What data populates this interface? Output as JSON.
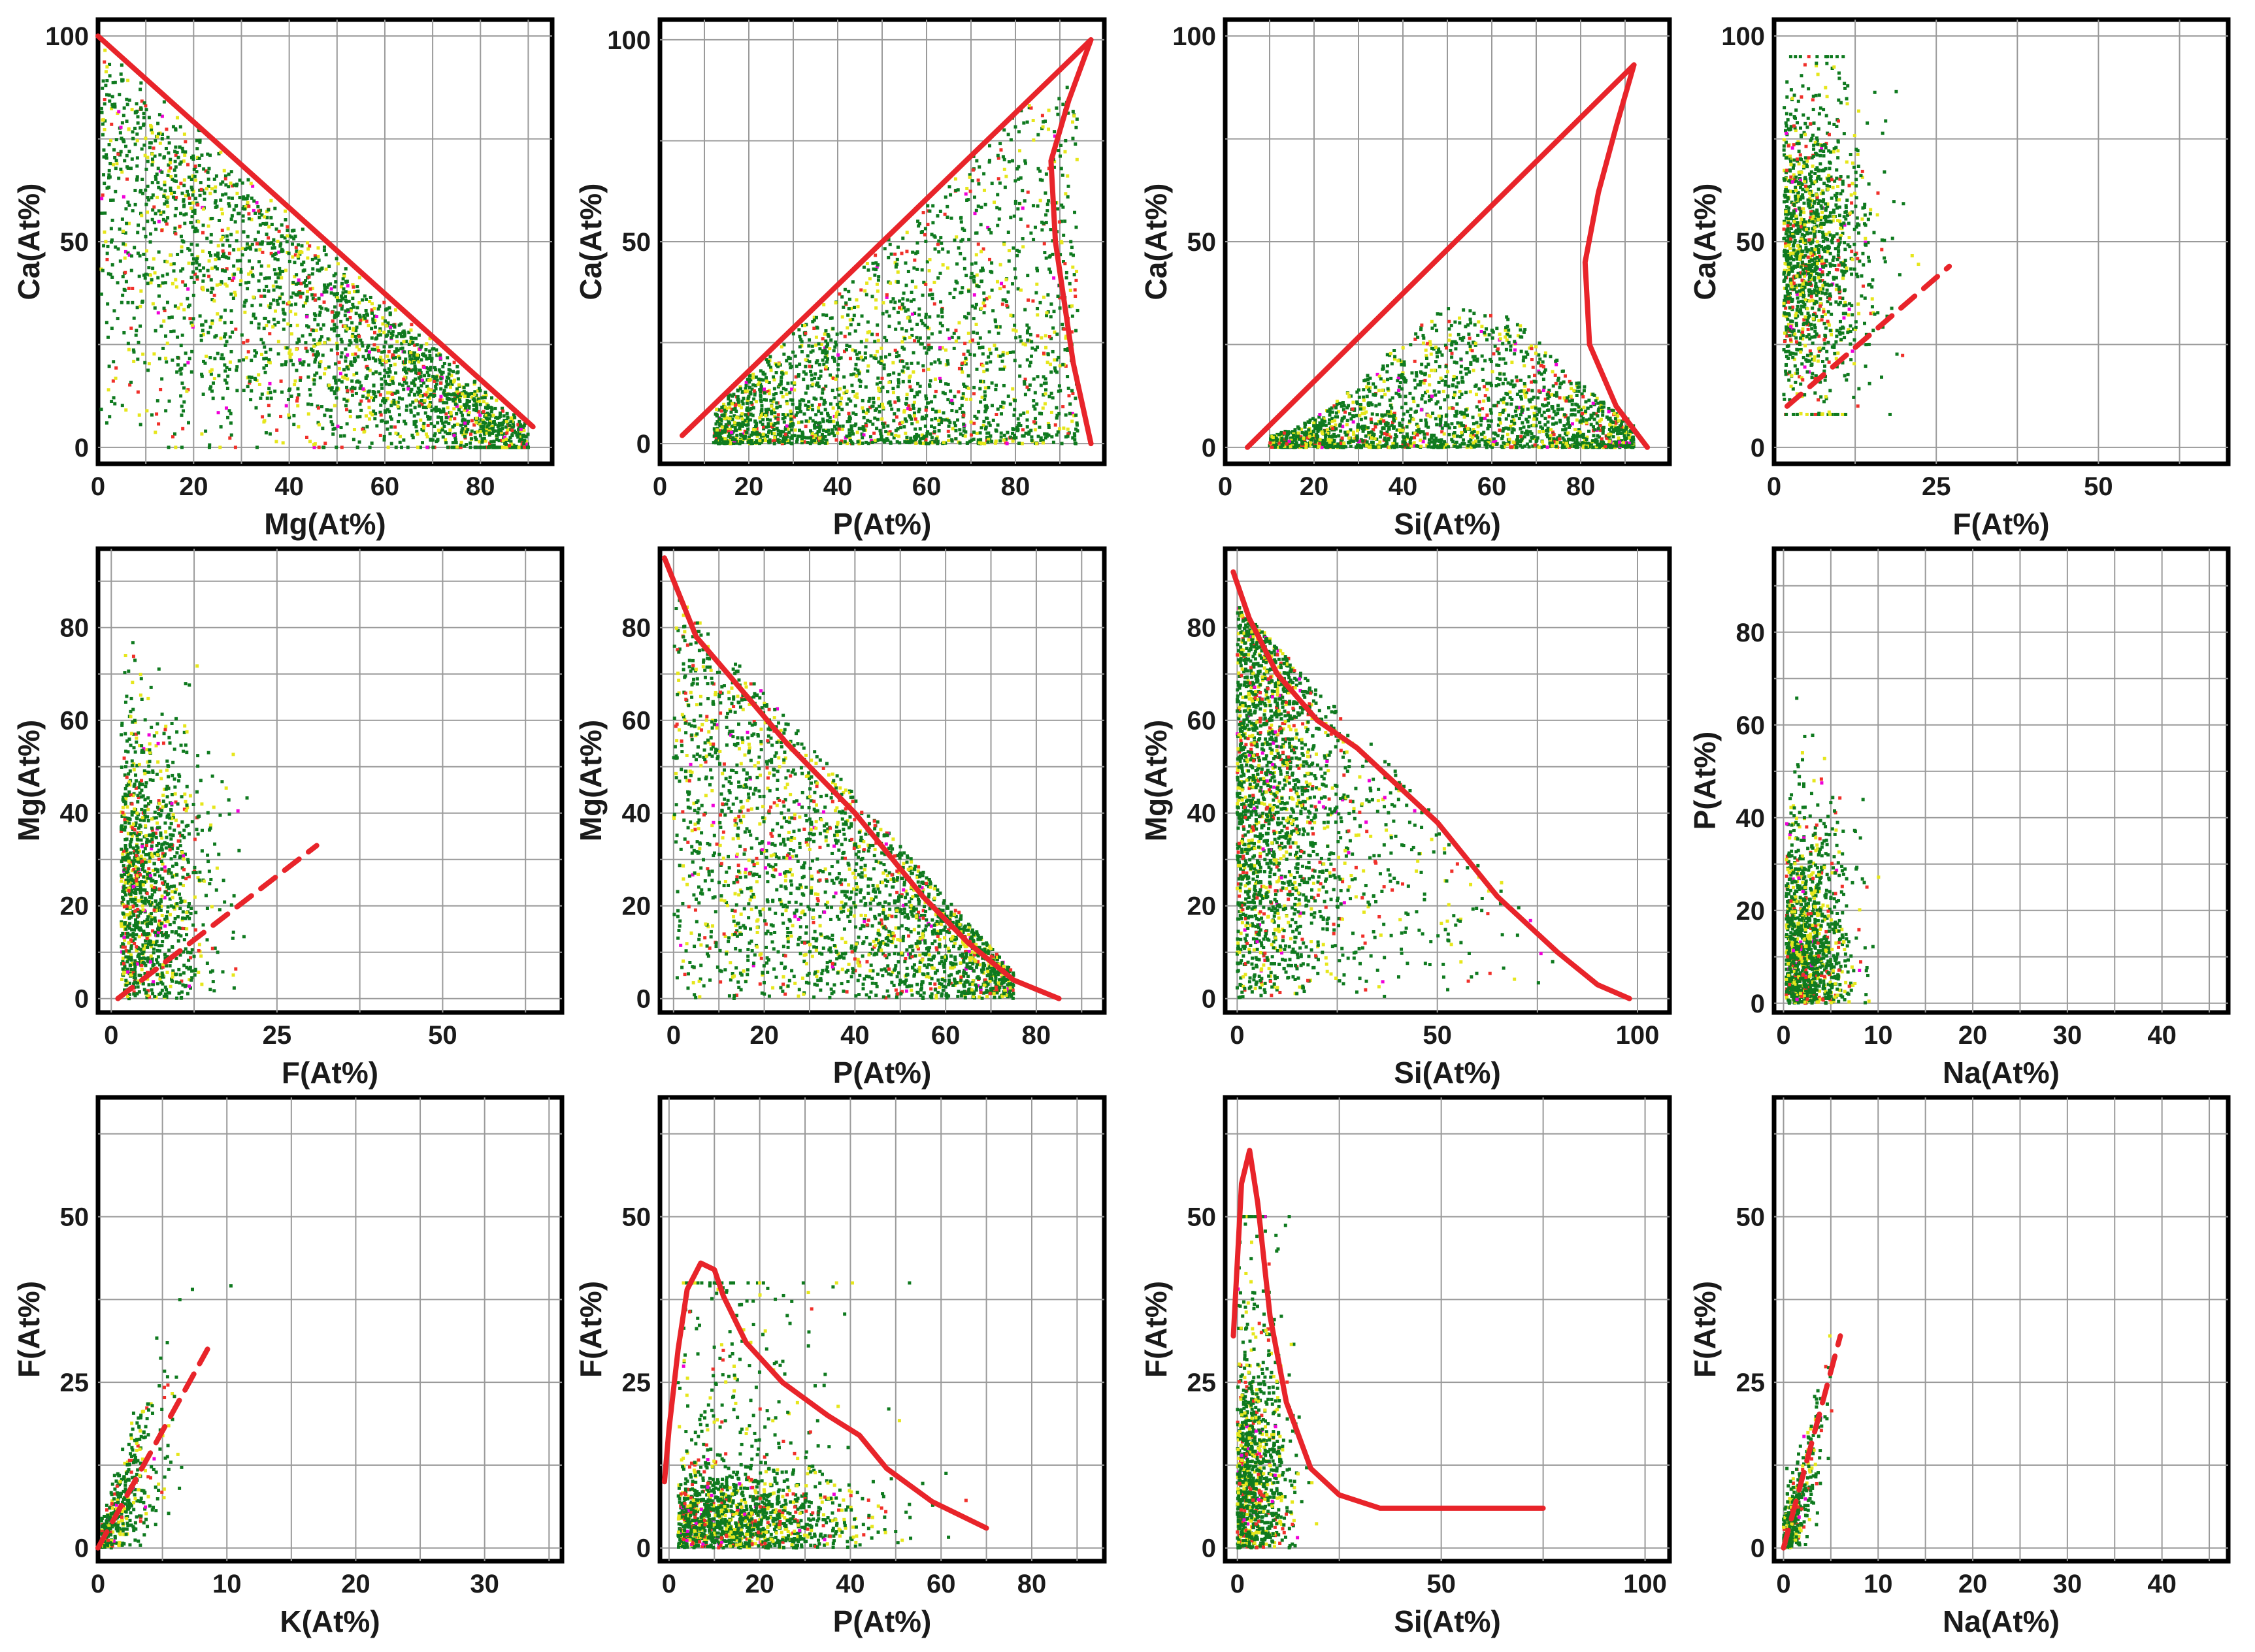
{
  "colors": {
    "low": "#0f7a1f",
    "mid": "#e6e61c",
    "high": "#f0302a",
    "peak": "#f000d8",
    "curve": "#e8242a",
    "grid": "#9a9a9a"
  },
  "chart_data": [
    {
      "type": "scatter",
      "xlabel": "Mg(At%)",
      "ylabel": "Ca(At%)",
      "xlim": [
        0,
        95
      ],
      "ylim": [
        -4,
        104
      ],
      "xticks": [
        0,
        20,
        40,
        60,
        80
      ],
      "yticks": [
        0,
        50,
        100
      ],
      "curves": [
        {
          "style": "solid",
          "x": [
            0,
            91
          ],
          "y": [
            100,
            5
          ]
        }
      ]
    },
    {
      "type": "scatter",
      "xlabel": "P(At%)",
      "ylabel": "Ca(At%)",
      "xlim": [
        0,
        100
      ],
      "ylim": [
        -5,
        105
      ],
      "xticks": [
        0,
        20,
        40,
        60,
        80
      ],
      "yticks": [
        0,
        50,
        100
      ],
      "curves": [
        {
          "style": "solid",
          "x": [
            5,
            97,
            92,
            88,
            89,
            93,
            97
          ],
          "y": [
            2,
            100,
            85,
            70,
            50,
            20,
            0
          ]
        }
      ]
    },
    {
      "type": "scatter",
      "xlabel": "Si(At%)",
      "ylabel": "Ca(At%)",
      "xlim": [
        0,
        100
      ],
      "ylim": [
        -4,
        104
      ],
      "xticks": [
        0,
        20,
        40,
        60,
        80
      ],
      "yticks": [
        0,
        50,
        100
      ],
      "curves": [
        {
          "style": "solid",
          "x": [
            5,
            92,
            88,
            84,
            81,
            82,
            88,
            95
          ],
          "y": [
            0,
            93,
            78,
            62,
            45,
            25,
            10,
            0
          ]
        }
      ]
    },
    {
      "type": "scatter",
      "xlabel": "F(At%)",
      "ylabel": "Ca(At%)",
      "xlim": [
        0,
        70
      ],
      "ylim": [
        -4,
        104
      ],
      "xticks": [
        0,
        25,
        50
      ],
      "yticks": [
        0,
        50,
        100
      ],
      "curves": [
        {
          "style": "dashed",
          "x": [
            2,
            27
          ],
          "y": [
            10,
            44
          ]
        }
      ]
    },
    {
      "type": "scatter",
      "xlabel": "F(At%)",
      "ylabel": "Mg(At%)",
      "xlim": [
        -2,
        68
      ],
      "ylim": [
        -3,
        97
      ],
      "xticks": [
        0,
        25,
        50
      ],
      "yticks": [
        0,
        20,
        40,
        60,
        80
      ],
      "curves": [
        {
          "style": "dashed",
          "x": [
            1,
            31
          ],
          "y": [
            0,
            33
          ]
        }
      ]
    },
    {
      "type": "scatter",
      "xlabel": "P(At%)",
      "ylabel": "Mg(At%)",
      "xlim": [
        -3,
        95
      ],
      "ylim": [
        -3,
        97
      ],
      "xticks": [
        0,
        20,
        40,
        60,
        80
      ],
      "yticks": [
        0,
        20,
        40,
        60,
        80
      ],
      "curves": [
        {
          "style": "solid",
          "x": [
            -2,
            5,
            12,
            25,
            40,
            55,
            65,
            75,
            85
          ],
          "y": [
            95,
            78,
            70,
            55,
            40,
            22,
            12,
            4,
            0
          ]
        }
      ]
    },
    {
      "type": "scatter",
      "xlabel": "Si(At%)",
      "ylabel": "Mg(At%)",
      "xlim": [
        -3,
        108
      ],
      "ylim": [
        -3,
        97
      ],
      "xticks": [
        0,
        50,
        100
      ],
      "yticks": [
        0,
        20,
        40,
        60,
        80
      ],
      "curves": [
        {
          "style": "solid",
          "x": [
            -1,
            3,
            10,
            20,
            30,
            50,
            65,
            80,
            90,
            98
          ],
          "y": [
            92,
            82,
            70,
            60,
            54,
            38,
            22,
            10,
            3,
            0
          ]
        }
      ]
    },
    {
      "type": "scatter",
      "xlabel": "Na(At%)",
      "ylabel": "P(At%)",
      "xlim": [
        -1,
        47
      ],
      "ylim": [
        -2,
        98
      ],
      "xticks": [
        0,
        10,
        20,
        30,
        40
      ],
      "yticks": [
        0,
        20,
        40,
        60,
        80
      ],
      "curves": []
    },
    {
      "type": "scatter",
      "xlabel": "K(At%)",
      "ylabel": "F(At%)",
      "xlim": [
        0,
        36
      ],
      "ylim": [
        -2,
        68
      ],
      "xticks": [
        0,
        10,
        20,
        30
      ],
      "yticks": [
        0,
        25,
        50
      ],
      "curves": [
        {
          "style": "dashed",
          "x": [
            0,
            8.5
          ],
          "y": [
            0,
            30
          ]
        }
      ]
    },
    {
      "type": "scatter",
      "xlabel": "P(At%)",
      "ylabel": "F(At%)",
      "xlim": [
        -2,
        96
      ],
      "ylim": [
        -2,
        68
      ],
      "xticks": [
        0,
        20,
        40,
        60,
        80
      ],
      "yticks": [
        0,
        25,
        50
      ],
      "curves": [
        {
          "style": "solid",
          "x": [
            70,
            58,
            48,
            42,
            35,
            25,
            17,
            12,
            10,
            7,
            4,
            2,
            0,
            -1
          ],
          "y": [
            3,
            7,
            12,
            17,
            20,
            25,
            31,
            38,
            42,
            43,
            39,
            30,
            18,
            10
          ]
        }
      ]
    },
    {
      "type": "scatter",
      "xlabel": "Si(At%)",
      "ylabel": "F(At%)",
      "xlim": [
        -3,
        106
      ],
      "ylim": [
        -2,
        68
      ],
      "xticks": [
        0,
        50,
        100
      ],
      "yticks": [
        0,
        25,
        50
      ],
      "curves": [
        {
          "style": "solid",
          "x": [
            -1,
            1,
            3,
            5,
            8,
            12,
            18,
            25,
            35,
            50,
            75
          ],
          "y": [
            32,
            55,
            60,
            52,
            35,
            22,
            12,
            8,
            6,
            6,
            6
          ]
        }
      ]
    },
    {
      "type": "scatter",
      "xlabel": "Na(At%)",
      "ylabel": "F(At%)",
      "xlim": [
        -1,
        47
      ],
      "ylim": [
        -2,
        68
      ],
      "xticks": [
        0,
        10,
        20,
        30,
        40
      ],
      "yticks": [
        0,
        25,
        50
      ],
      "curves": [
        {
          "style": "dashed",
          "x": [
            0,
            6
          ],
          "y": [
            0,
            32
          ]
        }
      ]
    }
  ]
}
